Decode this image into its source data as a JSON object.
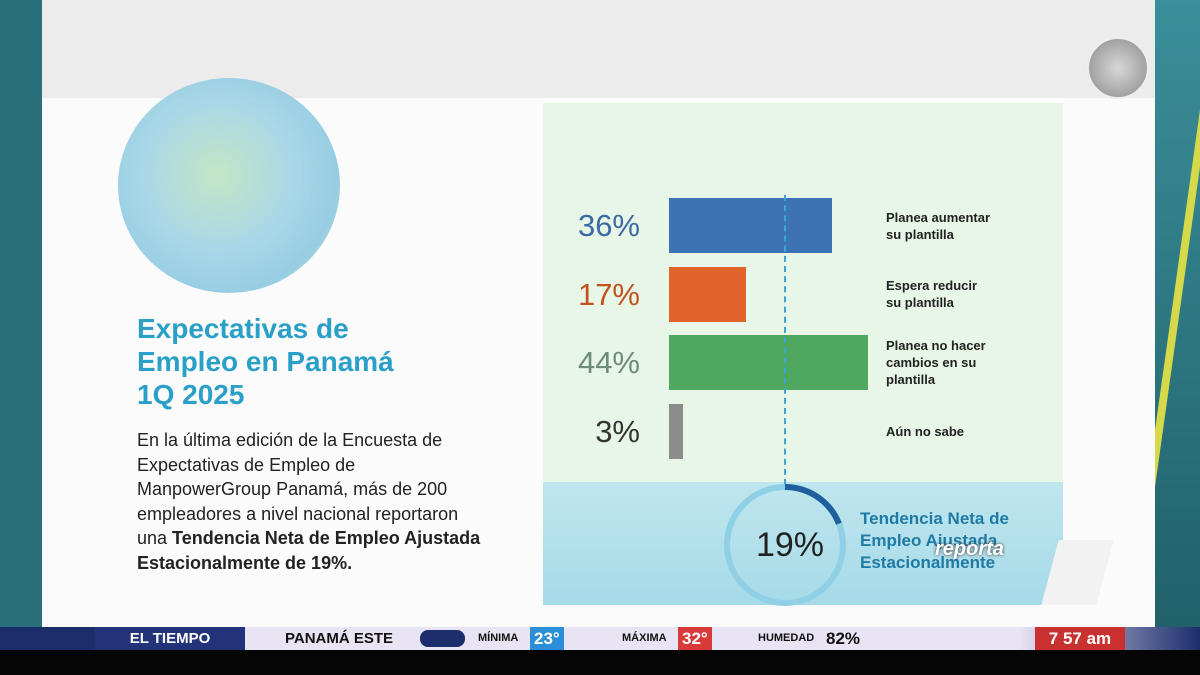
{
  "infographic": {
    "title_lines": [
      "Expectativas de",
      "Empleo en Panamá",
      "1Q 2025"
    ],
    "body_text": "En la última edición de la Encuesta de Expectativas de Empleo de ManpowerGroup Panamá, más de 200 empleadores a nivel nacional reportaron una ",
    "body_bold": "Tendencia Neta de Empleo Ajustada Estacionalmente de 19%.",
    "net_value": 19,
    "net_label": "19%",
    "net_caption_lines": [
      "Tendencia Neta de",
      "Empleo Ajustada",
      "Estacionalmente"
    ]
  },
  "chart_data": {
    "type": "bar",
    "orientation": "horizontal",
    "categories": [
      [
        "Planea aumentar",
        "su plantilla"
      ],
      [
        "Espera reducir",
        "su plantilla"
      ],
      [
        "Planea no hacer",
        "cambios en su",
        "plantilla"
      ],
      [
        "Aún no sabe"
      ]
    ],
    "values": [
      36,
      17,
      44,
      3
    ],
    "value_labels": [
      "36%",
      "17%",
      "44%",
      "3%"
    ],
    "colors": [
      "#3d72b4",
      "#e0642a",
      "#4fa860",
      "#8c8c8c"
    ],
    "label_colors": [
      "#3b69a6",
      "#c2531f",
      "#6d8c7b",
      "#333333"
    ]
  },
  "ticker": {
    "section": "EL TIEMPO",
    "location": "PANAMÁ ESTE",
    "min_label": "MÍNIMA",
    "min_value": "23°",
    "max_label": "MÁXIMA",
    "max_value": "32°",
    "humidity_label": "HUMEDAD",
    "humidity_value": "82%",
    "time": "7 57 am",
    "logo": "reporta"
  }
}
